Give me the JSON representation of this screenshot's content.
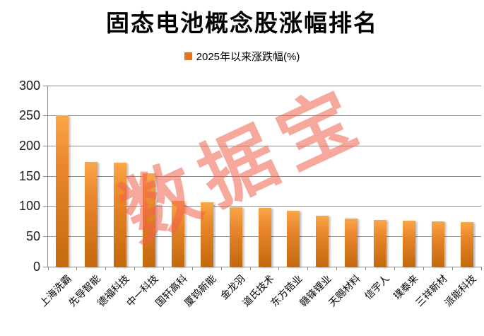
{
  "title": "固态电池概念股涨幅排名",
  "legend": {
    "label": "2025年以来涨跌幅(%)"
  },
  "watermark": {
    "text": "数据宝"
  },
  "colors": {
    "bar_top": "#FBA648",
    "bar_mid": "#E8862A",
    "bar_bottom": "#C4690E",
    "legend_swatch": "#E2751F",
    "gridline": "#8C8C8C",
    "axis_line": "#8C8C8C",
    "watermark": "rgba(241,97,77,0.55)",
    "title_text": "#000000",
    "axis_text": "#1A1A1A"
  },
  "chart_data": {
    "type": "bar",
    "title": "固态电池概念股涨幅排名",
    "series_name": "2025年以来涨跌幅(%)",
    "categories": [
      "上海洗霸",
      "先导智能",
      "德福科技",
      "中一科技",
      "国轩高科",
      "厦钨新能",
      "金龙羽",
      "道氏技术",
      "东方锆业",
      "赣锋锂业",
      "天赐材料",
      "信宇人",
      "璞泰来",
      "三祥新材",
      "派能科技"
    ],
    "values": [
      251,
      174,
      172,
      155,
      109,
      107,
      98,
      97,
      93,
      84,
      80,
      77,
      76,
      75,
      74
    ],
    "xlabel": "",
    "ylabel": "",
    "ylim": [
      0,
      300
    ],
    "yticks": [
      0,
      50,
      100,
      150,
      200,
      250,
      300
    ],
    "grid": true,
    "legend_position": "top-center",
    "x_tick_label_rotation_deg": 45
  }
}
